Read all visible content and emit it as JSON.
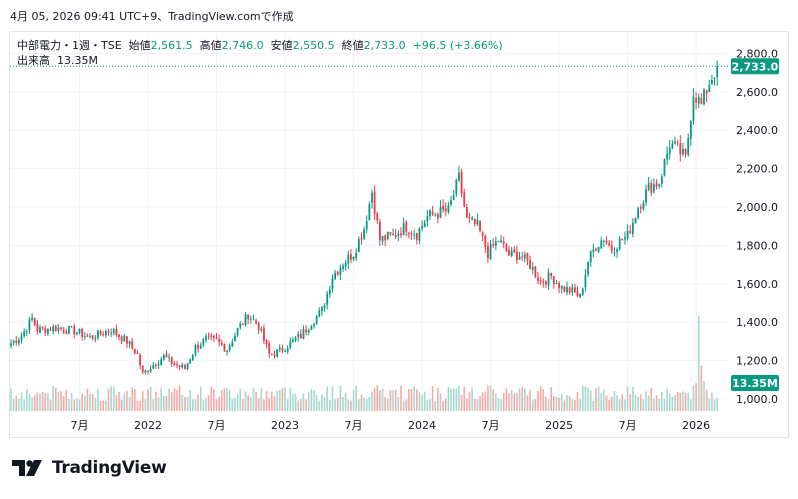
{
  "caption": "4月 05, 2026 09:41 UTC+9、TradingView.comで作成",
  "legend": {
    "symbol": "中部電力・1週・TSE",
    "open_label": "始値",
    "open": "2,561.5",
    "high_label": "高値",
    "high": "2,746.0",
    "low_label": "安値",
    "low": "2,550.5",
    "close_label": "終値",
    "close": "2,733.0",
    "change": "+96.5 (+3.66%)",
    "volume_label": "出来高",
    "volume": "13.35M"
  },
  "brand": {
    "name": "TradingView"
  },
  "colors": {
    "up": "#089981",
    "down": "#f23645",
    "vol_up": "#a6d8cf",
    "vol_down": "#f7a9a7",
    "grid": "#f0f3fa",
    "text": "#131722"
  },
  "chart_data": {
    "type": "candlestick",
    "interval": "weekly",
    "ylim": [
      900,
      2900
    ],
    "y_ticks": [
      {
        "value": 1000,
        "label": "1,000.0"
      },
      {
        "value": 1200,
        "label": "1,200.0"
      },
      {
        "value": 1400,
        "label": "1,400.0"
      },
      {
        "value": 1600,
        "label": "1,600.0"
      },
      {
        "value": 1800,
        "label": "1,800.0"
      },
      {
        "value": 2000,
        "label": "2,000.0"
      },
      {
        "value": 2200,
        "label": "2,200.0"
      },
      {
        "value": 2400,
        "label": "2,400.0"
      },
      {
        "value": 2600,
        "label": "2,600.0"
      },
      {
        "value": 2800,
        "label": "2,800.0"
      }
    ],
    "x_ticks": [
      {
        "week": 26,
        "label": "7月"
      },
      {
        "week": 52,
        "label": "2022"
      },
      {
        "week": 78,
        "label": "7月"
      },
      {
        "week": 104,
        "label": "2023"
      },
      {
        "week": 130,
        "label": "7月"
      },
      {
        "week": 156,
        "label": "2024"
      },
      {
        "week": 182,
        "label": "7月"
      },
      {
        "week": 208,
        "label": "2025"
      },
      {
        "week": 234,
        "label": "7月"
      },
      {
        "week": 260,
        "label": "2026"
      }
    ],
    "last_price": {
      "value": 2733.0,
      "label": "2,733.0"
    },
    "last_volume": {
      "label": "13.35M"
    },
    "close_path": [
      [
        0,
        1290
      ],
      [
        4,
        1330
      ],
      [
        8,
        1420
      ],
      [
        10,
        1360
      ],
      [
        16,
        1370
      ],
      [
        24,
        1355
      ],
      [
        30,
        1320
      ],
      [
        38,
        1360
      ],
      [
        44,
        1300
      ],
      [
        48,
        1230
      ],
      [
        50,
        1130
      ],
      [
        54,
        1180
      ],
      [
        58,
        1220
      ],
      [
        62,
        1180
      ],
      [
        66,
        1160
      ],
      [
        70,
        1270
      ],
      [
        74,
        1310
      ],
      [
        78,
        1300
      ],
      [
        82,
        1260
      ],
      [
        86,
        1360
      ],
      [
        90,
        1440
      ],
      [
        94,
        1380
      ],
      [
        98,
        1230
      ],
      [
        102,
        1250
      ],
      [
        106,
        1290
      ],
      [
        110,
        1330
      ],
      [
        114,
        1400
      ],
      [
        118,
        1460
      ],
      [
        122,
        1640
      ],
      [
        126,
        1710
      ],
      [
        130,
        1760
      ],
      [
        134,
        1890
      ],
      [
        137,
        2080
      ],
      [
        140,
        1830
      ],
      [
        145,
        1850
      ],
      [
        150,
        1900
      ],
      [
        154,
        1860
      ],
      [
        158,
        1950
      ],
      [
        162,
        1970
      ],
      [
        166,
        1980
      ],
      [
        170,
        2150
      ],
      [
        173,
        1930
      ],
      [
        177,
        1900
      ],
      [
        181,
        1760
      ],
      [
        185,
        1830
      ],
      [
        189,
        1750
      ],
      [
        193,
        1750
      ],
      [
        197,
        1700
      ],
      [
        201,
        1610
      ],
      [
        205,
        1640
      ],
      [
        209,
        1580
      ],
      [
        213,
        1560
      ],
      [
        216,
        1530
      ],
      [
        219,
        1720
      ],
      [
        222,
        1800
      ],
      [
        225,
        1840
      ],
      [
        228,
        1780
      ],
      [
        231,
        1820
      ],
      [
        234,
        1850
      ],
      [
        238,
        2000
      ],
      [
        242,
        2100
      ],
      [
        246,
        2130
      ],
      [
        250,
        2330
      ],
      [
        253,
        2300
      ],
      [
        256,
        2250
      ],
      [
        259,
        2600
      ],
      [
        262,
        2530
      ],
      [
        265,
        2650
      ],
      [
        268,
        2733
      ]
    ]
  }
}
